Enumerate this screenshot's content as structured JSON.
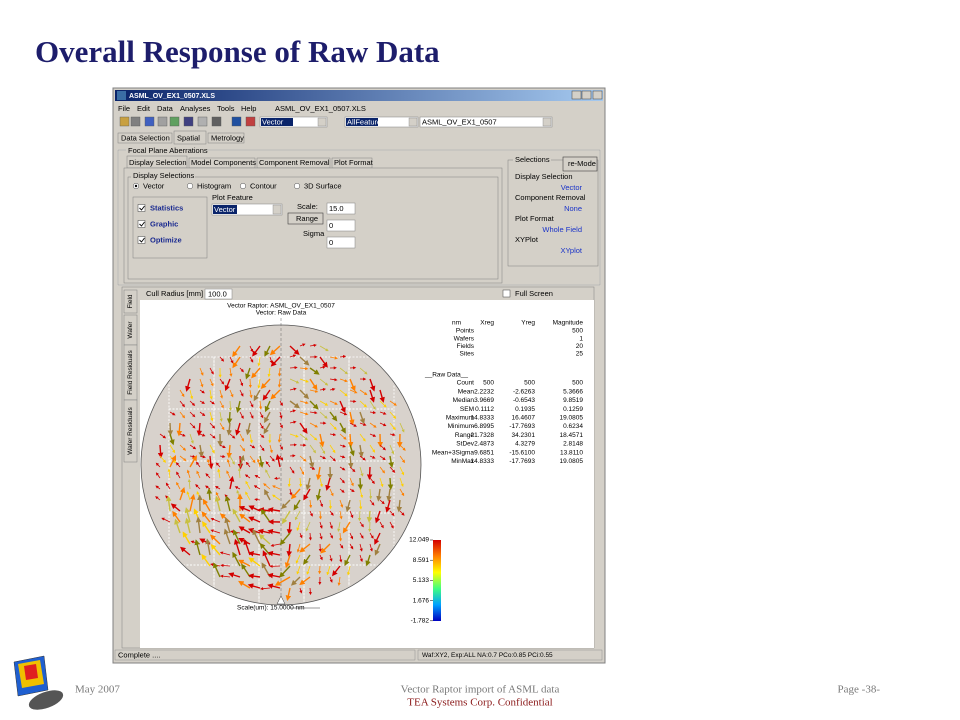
{
  "title": "Overall Response of Raw Data",
  "window": {
    "title": "ASML_OV_EX1_0507.XLS",
    "menu": [
      "File",
      "Edit",
      "Data",
      "Analyses",
      "Tools",
      "Help",
      "ASML_OV_EX1_0507.XLS"
    ],
    "toolbar": [
      "Vector",
      "AllFeatures",
      "ASML_OV_EX1_0507"
    ],
    "tabs": [
      "Data Selection",
      "Spatial",
      "Metrology"
    ],
    "group": "Focal Plane Aberrations",
    "subtabs": [
      "Display Selection",
      "Model Components",
      "Component Removal",
      "Plot Format"
    ],
    "display": {
      "label": "Display Selections",
      "radios": [
        "Vector",
        "Histogram",
        "Contour",
        "3D Surface"
      ],
      "checks": [
        "Statistics",
        "Graphic",
        "Optimize"
      ],
      "plot_feature": "Plot Feature",
      "plot_feature_value": "Vector",
      "scale_label": "Scale:",
      "scale_value": "15.0",
      "range_button": "Range",
      "range_value": "0",
      "sigma_label": "Sigma",
      "sigma_value": "0"
    },
    "selections": {
      "label": "Selections",
      "button": "re-Mode",
      "items": [
        {
          "name": "Display Selection",
          "value": "Vector"
        },
        {
          "name": "Component Removal",
          "value": "None"
        },
        {
          "name": "Plot Format",
          "value": "Whole Field"
        },
        {
          "name": "XYPlot",
          "value": "XYplot"
        }
      ]
    },
    "plot": {
      "side_tabs": [
        "Field",
        "Wafer",
        "Field Residuals",
        "Wafer Residuals"
      ],
      "cull_label": "Cull Radius [mm]",
      "cull_value": "100.0",
      "full_screen": "Full Screen",
      "title": "Vector Raptor: ASML_OV_EX1_0507",
      "subtitle": "Vector: Raw Data",
      "header": [
        "nm",
        "Xreg",
        "Yreg",
        "Magnitude"
      ],
      "summary": [
        {
          "label": "Points",
          "value": "500"
        },
        {
          "label": "Wafers",
          "value": "1"
        },
        {
          "label": "Fields",
          "value": "20"
        },
        {
          "label": "Sites",
          "value": "25"
        }
      ],
      "section": "__Raw Data__",
      "rows": [
        {
          "label": "Count",
          "values": [
            "500",
            "500",
            "500"
          ]
        },
        {
          "label": "Mean",
          "values": [
            "2.2232",
            "-2.6263",
            "5.3666"
          ]
        },
        {
          "label": "Median",
          "values": [
            "3.9669",
            "-0.6543",
            "9.8519"
          ]
        },
        {
          "label": "SEM",
          "values": [
            "0.1112",
            "0.1935",
            "0.1259"
          ]
        },
        {
          "label": "Maximum",
          "values": [
            "14.8333",
            "16.4607",
            "19.0805"
          ]
        },
        {
          "label": "Minimum",
          "values": [
            "-6.8995",
            "-17.7693",
            "0.6234"
          ]
        },
        {
          "label": "Range",
          "values": [
            "21.7328",
            "34.2301",
            "18.4571"
          ]
        },
        {
          "label": "StDev",
          "values": [
            "2.4873",
            "4.3279",
            "2.8148"
          ]
        },
        {
          "label": "Mean+3Sigma",
          "values": [
            "9.6851",
            "-15.6100",
            "13.8110"
          ]
        },
        {
          "label": "MinMax",
          "values": [
            "14.8333",
            "-17.7693",
            "19.0805"
          ]
        }
      ],
      "colorbar": [
        "12.049",
        "8.591",
        "5.133",
        "1.676",
        "-1.782"
      ],
      "scale": "Scale(um): 15.0000 nm"
    },
    "status": [
      "Complete ....",
      "Waf:XY2, Exp:ALL NA:0.7 PCo:0.85 PCi:0.55"
    ]
  },
  "footer": {
    "date": "May 2007",
    "center": "Vector Raptor import of ASML data",
    "page": "Page -38-",
    "confidential": "TEA Systems Corp. Confidential"
  }
}
